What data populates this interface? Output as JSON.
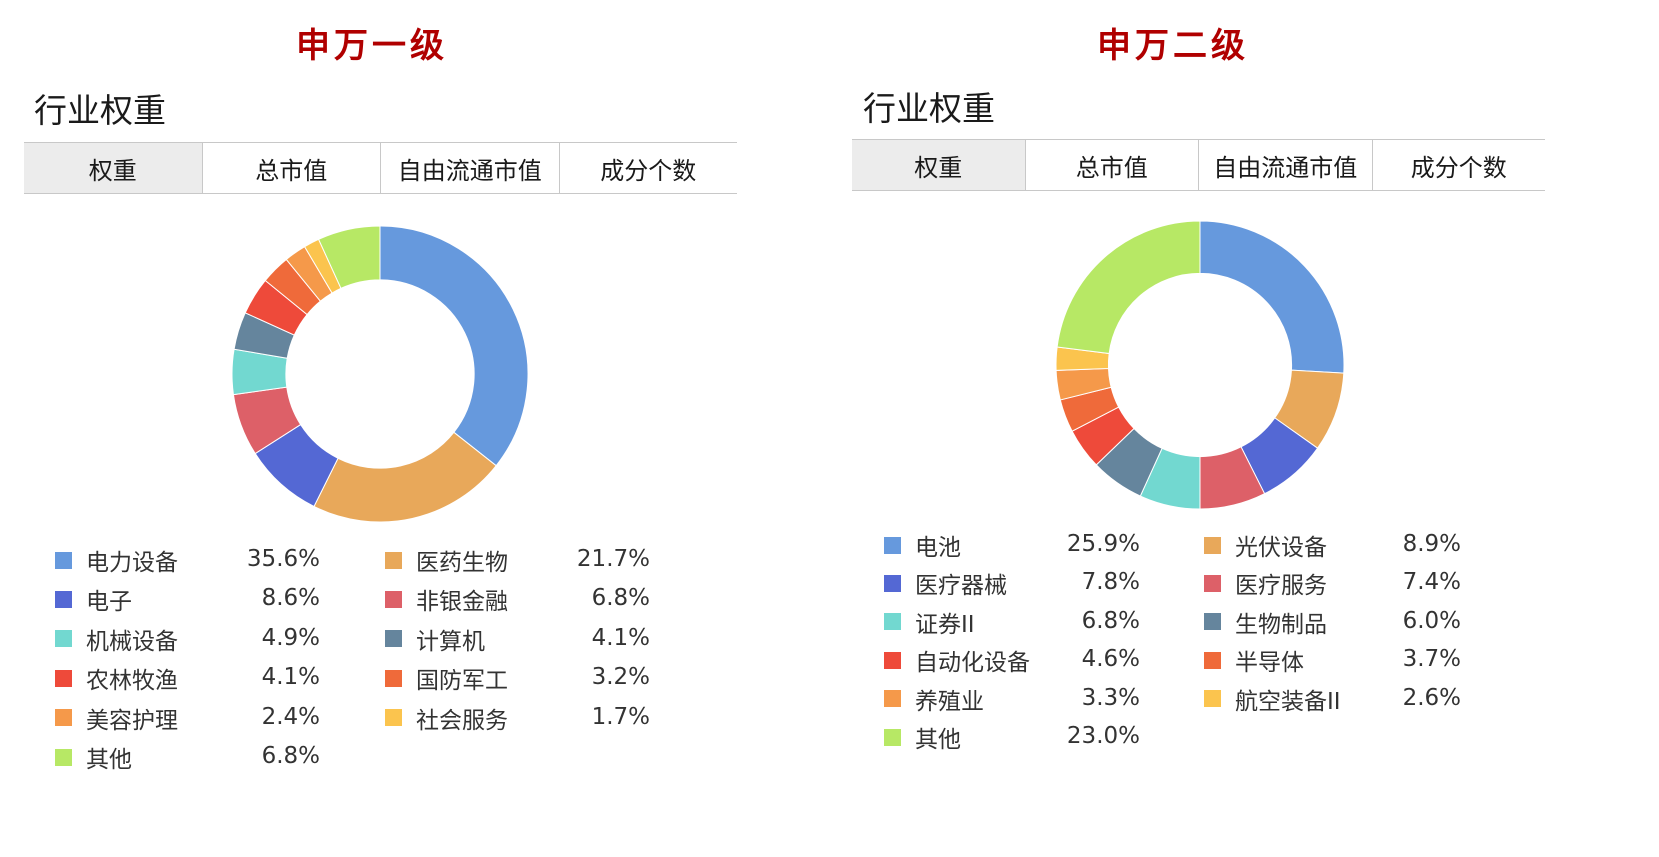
{
  "panels": [
    {
      "level_title": "申万一级",
      "section_title": "行业权重",
      "tabs": [
        "权重",
        "总市值",
        "自由流通市值",
        "成分个数"
      ],
      "active_tab": 0
    },
    {
      "level_title": "申万二级",
      "section_title": "行业权重",
      "tabs": [
        "权重",
        "总市值",
        "自由流通市值",
        "成分个数"
      ],
      "active_tab": 0
    }
  ],
  "chart_data": [
    {
      "type": "pie",
      "donut": true,
      "title": "",
      "legend_placement": "bottom",
      "unit": "%",
      "categories": [
        "电力设备",
        "医药生物",
        "电子",
        "非银金融",
        "机械设备",
        "计算机",
        "农林牧渔",
        "国防军工",
        "美容护理",
        "社会服务",
        "其他"
      ],
      "values": [
        35.6,
        21.7,
        8.6,
        6.8,
        4.9,
        4.1,
        4.1,
        3.2,
        2.4,
        1.7,
        6.8
      ],
      "labels": [
        "35.6%",
        "21.7%",
        "8.6%",
        "6.8%",
        "4.9%",
        "4.1%",
        "4.1%",
        "3.2%",
        "2.4%",
        "1.7%",
        "6.8%"
      ],
      "colors": [
        "#6699dd",
        "#e8a85a",
        "#5468d4",
        "#dd6068",
        "#72d8d0",
        "#65859d",
        "#ee4a3a",
        "#ef6a3a",
        "#f5994a",
        "#fbc44e",
        "#b7e865"
      ]
    },
    {
      "type": "pie",
      "donut": true,
      "title": "",
      "legend_placement": "bottom",
      "unit": "%",
      "categories": [
        "电池",
        "光伏设备",
        "医疗器械",
        "医疗服务",
        "证券II",
        "生物制品",
        "自动化设备",
        "半导体",
        "养殖业",
        "航空装备II",
        "其他"
      ],
      "values": [
        25.9,
        8.9,
        7.8,
        7.4,
        6.8,
        6.0,
        4.6,
        3.7,
        3.3,
        2.6,
        23.0
      ],
      "labels": [
        "25.9%",
        "8.9%",
        "7.8%",
        "7.4%",
        "6.8%",
        "6.0%",
        "4.6%",
        "3.7%",
        "3.3%",
        "2.6%",
        "23.0%"
      ],
      "colors": [
        "#6699dd",
        "#e8a85a",
        "#5468d4",
        "#dd6068",
        "#72d8d0",
        "#65859d",
        "#ee4a3a",
        "#ef6a3a",
        "#f5994a",
        "#fbc44e",
        "#b7e865"
      ]
    }
  ]
}
